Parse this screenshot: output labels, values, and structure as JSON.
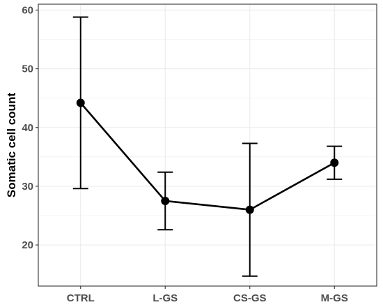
{
  "chart_data": {
    "type": "line",
    "categories": [
      "CTRL",
      "L-GS",
      "CS-GS",
      "M-GS"
    ],
    "series": [
      {
        "values": [
          44.2,
          27.5,
          26.0,
          34.0
        ],
        "error_low": [
          29.6,
          22.6,
          14.7,
          31.2
        ],
        "error_high": [
          58.8,
          32.4,
          37.3,
          36.8
        ]
      }
    ],
    "xlabel": "",
    "ylabel": "Somatic cell count",
    "ylim": [
      13,
      61
    ],
    "yticks": [
      20,
      30,
      40,
      50,
      60
    ],
    "grid": true,
    "colors": {
      "line": "#000000",
      "grid": "#ebebeb",
      "panel_border": "#333333",
      "tick_text": "#4d4d4d"
    }
  }
}
